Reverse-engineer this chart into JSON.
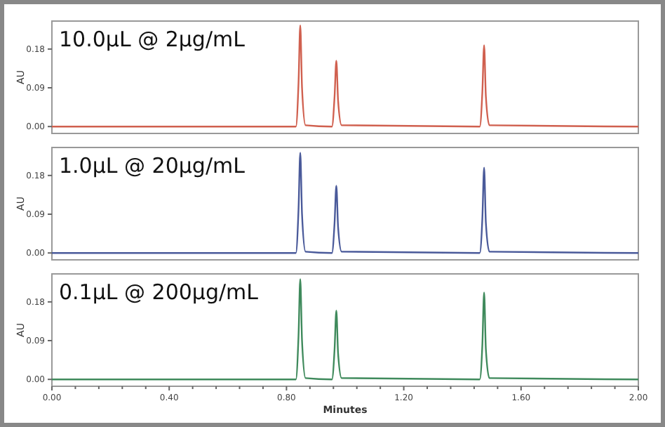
{
  "chart_data": [
    {
      "type": "line",
      "title": "10.0µL @ 2µg/mL",
      "ylabel": "AU",
      "tick_labels": "y",
      "xlim": [
        0,
        2
      ],
      "ylim": [
        -0.016,
        0.245
      ],
      "yticks": [
        {
          "value": 0,
          "label": "0.00"
        },
        {
          "value": 0.09,
          "label": "0.09"
        },
        {
          "value": 0.18,
          "label": "0.18"
        }
      ],
      "x": [
        0,
        0.832,
        0.841,
        0.847,
        0.853,
        0.865,
        0.955,
        0.964,
        0.97,
        0.976,
        0.988,
        1.459,
        1.468,
        1.474,
        1.48,
        1.492,
        2
      ],
      "series": [
        {
          "color": "#d0604f",
          "values": [
            0,
            0,
            0.1,
            0.235,
            0.09,
            0.003,
            0,
            0.07,
            0.153,
            0.06,
            0.003,
            0,
            0.08,
            0.189,
            0.07,
            0.003,
            0
          ]
        }
      ]
    },
    {
      "type": "line",
      "title": "1.0µL @ 20µg/mL",
      "ylabel": "AU",
      "tick_labels": "y",
      "xlim": [
        0,
        2
      ],
      "ylim": [
        -0.016,
        0.245
      ],
      "yticks": [
        {
          "value": 0,
          "label": "0.00"
        },
        {
          "value": 0.09,
          "label": "0.09"
        },
        {
          "value": 0.18,
          "label": "0.18"
        }
      ],
      "x": [
        0,
        0.832,
        0.841,
        0.847,
        0.853,
        0.865,
        0.955,
        0.964,
        0.97,
        0.976,
        0.988,
        1.459,
        1.468,
        1.474,
        1.48,
        1.492,
        2
      ],
      "series": [
        {
          "color": "#4a5a9a",
          "values": [
            0,
            0,
            0.1,
            0.233,
            0.09,
            0.003,
            0,
            0.07,
            0.156,
            0.06,
            0.003,
            0,
            0.08,
            0.198,
            0.07,
            0.003,
            0
          ]
        }
      ]
    },
    {
      "type": "line",
      "title": "0.1µL @ 200µg/mL",
      "xlabel": "Minutes",
      "ylabel": "AU",
      "xlim": [
        0,
        2
      ],
      "ylim": [
        -0.016,
        0.245
      ],
      "xticks": [
        {
          "value": 0,
          "label": "0.00"
        },
        {
          "value": 0.08,
          "label": null
        },
        {
          "value": 0.16,
          "label": null
        },
        {
          "value": 0.24,
          "label": null
        },
        {
          "value": 0.32,
          "label": null
        },
        {
          "value": 0.4,
          "label": "0.40"
        },
        {
          "value": 0.48,
          "label": null
        },
        {
          "value": 0.56,
          "label": null
        },
        {
          "value": 0.64,
          "label": null
        },
        {
          "value": 0.72,
          "label": null
        },
        {
          "value": 0.8,
          "label": "0.80"
        },
        {
          "value": 0.88,
          "label": null
        },
        {
          "value": 0.96,
          "label": null
        },
        {
          "value": 1.04,
          "label": null
        },
        {
          "value": 1.12,
          "label": null
        },
        {
          "value": 1.2,
          "label": "1.20"
        },
        {
          "value": 1.28,
          "label": null
        },
        {
          "value": 1.36,
          "label": null
        },
        {
          "value": 1.44,
          "label": null
        },
        {
          "value": 1.52,
          "label": null
        },
        {
          "value": 1.6,
          "label": "1.60"
        },
        {
          "value": 1.68,
          "label": null
        },
        {
          "value": 1.76,
          "label": null
        },
        {
          "value": 1.84,
          "label": null
        },
        {
          "value": 1.92,
          "label": null
        },
        {
          "value": 2,
          "label": "2.00"
        }
      ],
      "yticks": [
        {
          "value": 0,
          "label": "0.00"
        },
        {
          "value": 0.09,
          "label": "0.09"
        },
        {
          "value": 0.18,
          "label": "0.18"
        }
      ],
      "x": [
        0,
        0.832,
        0.841,
        0.847,
        0.853,
        0.865,
        0.955,
        0.964,
        0.97,
        0.976,
        0.988,
        1.459,
        1.468,
        1.474,
        1.48,
        1.492,
        2
      ],
      "series": [
        {
          "color": "#3f8a5c",
          "values": [
            0,
            0,
            0.1,
            0.233,
            0.09,
            0.003,
            0,
            0.07,
            0.16,
            0.06,
            0.003,
            0,
            0.08,
            0.202,
            0.07,
            0.003,
            0
          ]
        }
      ]
    }
  ]
}
